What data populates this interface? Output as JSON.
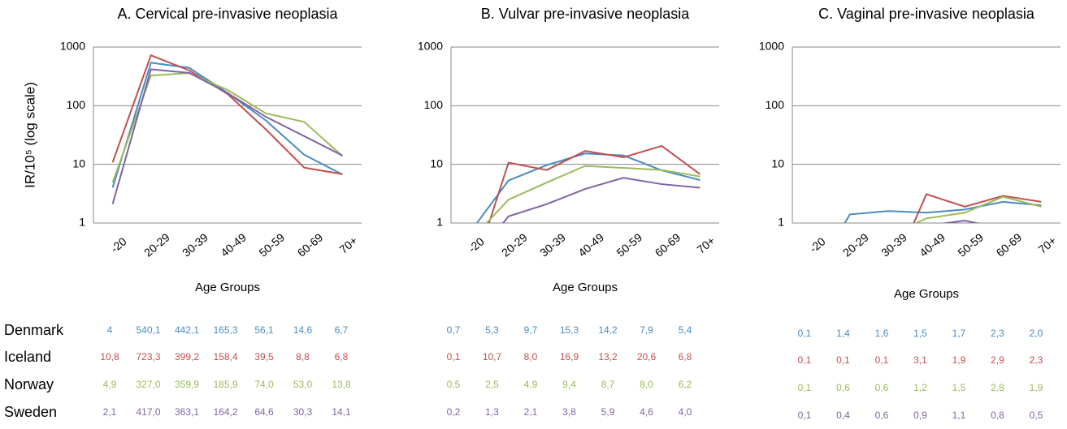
{
  "chart_data": [
    {
      "type": "line",
      "title": "A. Cervical pre-invasive neoplasia",
      "ylabel": "IR/10⁵ (log scale)",
      "xlabel": "Age Groups",
      "categories": [
        "-20",
        "20-29",
        "30-39",
        "40-49",
        "50-59",
        "60-69",
        "70+"
      ],
      "ylim": [
        1,
        1000
      ],
      "yticks": [
        1,
        10,
        100,
        1000
      ],
      "log_scale": true,
      "grid": true,
      "series": [
        {
          "name": "Denmark",
          "color": "#4a8bc4",
          "values": [
            4,
            540.1,
            442.1,
            165.3,
            56.1,
            14.6,
            6.7
          ],
          "value_labels": [
            "4",
            "540,1",
            "442,1",
            "165,3",
            "56,1",
            "14,6",
            "6,7"
          ]
        },
        {
          "name": "Iceland",
          "color": "#c0504d",
          "values": [
            10.8,
            723.3,
            399.2,
            158.4,
            39.5,
            8.8,
            6.8
          ],
          "value_labels": [
            "10,8",
            "723,3",
            "399,2",
            "158,4",
            "39,5",
            "8,8",
            "6,8"
          ]
        },
        {
          "name": "Norway",
          "color": "#9bbb59",
          "values": [
            4.9,
            327.0,
            359.9,
            185.9,
            74.0,
            53.0,
            13.8
          ],
          "value_labels": [
            "4,9",
            "327,0",
            "359,9",
            "185,9",
            "74,0",
            "53,0",
            "13,8"
          ]
        },
        {
          "name": "Sweden",
          "color": "#8064a2",
          "values": [
            2.1,
            417.0,
            363.1,
            164.2,
            64.6,
            30.3,
            14.1
          ],
          "value_labels": [
            "2,1",
            "417,0",
            "363,1",
            "164,2",
            "64,6",
            "30,3",
            "14,1"
          ]
        }
      ]
    },
    {
      "type": "line",
      "title": "B. Vulvar pre-invasive neoplasia",
      "xlabel": "Age Groups",
      "categories": [
        "-20",
        "20-29",
        "30-39",
        "40-49",
        "50-59",
        "60-69",
        "70+"
      ],
      "ylim": [
        1,
        1000
      ],
      "yticks": [
        1,
        10,
        100,
        1000
      ],
      "log_scale": true,
      "grid": true,
      "series": [
        {
          "color": "#4a8bc4",
          "values": [
            0.7,
            5.3,
            9.7,
            15.3,
            14.2,
            7.9,
            5.4
          ],
          "value_labels": [
            "0,7",
            "5,3",
            "9,7",
            "15,3",
            "14,2",
            "7,9",
            "5,4"
          ]
        },
        {
          "color": "#c0504d",
          "values": [
            0.1,
            10.7,
            8.0,
            16.9,
            13.2,
            20.6,
            6.8
          ],
          "value_labels": [
            "0,1",
            "10,7",
            "8,0",
            "16,9",
            "13,2",
            "20,6",
            "6,8"
          ]
        },
        {
          "color": "#9bbb59",
          "values": [
            0.5,
            2.5,
            4.9,
            9.4,
            8.7,
            8.0,
            6.2
          ],
          "value_labels": [
            "0,5",
            "2,5",
            "4,9",
            "9,4",
            "8,7",
            "8,0",
            "6,2"
          ]
        },
        {
          "color": "#8064a2",
          "values": [
            0.2,
            1.3,
            2.1,
            3.8,
            5.9,
            4.6,
            4.0
          ],
          "value_labels": [
            "0,2",
            "1,3",
            "2,1",
            "3,8",
            "5,9",
            "4,6",
            "4,0"
          ]
        }
      ]
    },
    {
      "type": "line",
      "title": "C. Vaginal pre-invasive neoplasia",
      "xlabel": "Age Groups",
      "categories": [
        "-20",
        "20-29",
        "30-39",
        "40-49",
        "50-59",
        "60-69",
        "70+"
      ],
      "ylim": [
        1,
        1000
      ],
      "yticks": [
        1,
        10,
        100,
        1000
      ],
      "log_scale": true,
      "grid": true,
      "series": [
        {
          "color": "#4a8bc4",
          "values": [
            0.1,
            1.4,
            1.6,
            1.5,
            1.7,
            2.3,
            2.0
          ],
          "value_labels": [
            "0,1",
            "1,4",
            "1,6",
            "1,5",
            "1,7",
            "2,3",
            "2,0"
          ]
        },
        {
          "color": "#c0504d",
          "values": [
            0.1,
            0.1,
            0.1,
            3.1,
            1.9,
            2.9,
            2.3
          ],
          "value_labels": [
            "0,1",
            "0,1",
            "0,1",
            "3,1",
            "1,9",
            "2,9",
            "2,3"
          ]
        },
        {
          "color": "#9bbb59",
          "values": [
            0.1,
            0.6,
            0.6,
            1.2,
            1.5,
            2.8,
            1.9
          ],
          "value_labels": [
            "0,1",
            "0,6",
            "0,6",
            "1,2",
            "1,5",
            "2,8",
            "1,9"
          ]
        },
        {
          "color": "#8064a2",
          "values": [
            0.1,
            0.4,
            0.6,
            0.9,
            1.1,
            0.8,
            0.5
          ],
          "value_labels": [
            "0,1",
            "0,4",
            "0,6",
            "0,9",
            "1,1",
            "0,8",
            "0,5"
          ]
        }
      ]
    }
  ]
}
